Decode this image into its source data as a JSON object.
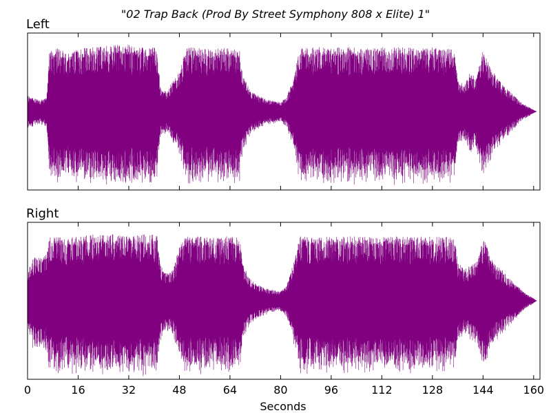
{
  "figure_title": "\"02 Trap Back  (Prod By Street Symphony 808 x Elite) 1\"",
  "chart_data": [
    {
      "type": "area",
      "title": "Left",
      "xlabel": "",
      "ylabel": "",
      "xlim": [
        0,
        162
      ],
      "ylim": [
        -1,
        1
      ],
      "grid": false,
      "color": "#800080",
      "series": [
        {
          "x": [
            0,
            2,
            4,
            6,
            7,
            8,
            10,
            12,
            16,
            20,
            24,
            28,
            32,
            36,
            40,
            41,
            42,
            44,
            46,
            48,
            50,
            52,
            56,
            60,
            64,
            66,
            67,
            68,
            70,
            72,
            76,
            80,
            82,
            84,
            86,
            88,
            92,
            96,
            100,
            104,
            108,
            112,
            116,
            120,
            124,
            128,
            132,
            134,
            135,
            136,
            138,
            140,
            142,
            144,
            146,
            148,
            150,
            152,
            154,
            156,
            158,
            160,
            161
          ],
          "envelope": [
            0.2,
            0.17,
            0.15,
            0.17,
            0.8,
            0.8,
            0.82,
            0.75,
            0.8,
            0.82,
            0.85,
            0.85,
            0.85,
            0.82,
            0.82,
            0.8,
            0.3,
            0.25,
            0.4,
            0.5,
            0.8,
            0.82,
            0.8,
            0.8,
            0.82,
            0.8,
            0.8,
            0.5,
            0.3,
            0.22,
            0.15,
            0.12,
            0.2,
            0.4,
            0.8,
            0.82,
            0.82,
            0.82,
            0.82,
            0.82,
            0.82,
            0.82,
            0.82,
            0.82,
            0.82,
            0.82,
            0.8,
            0.8,
            0.75,
            0.4,
            0.35,
            0.5,
            0.45,
            0.8,
            0.6,
            0.45,
            0.35,
            0.28,
            0.2,
            0.12,
            0.07,
            0.02,
            0.0
          ]
        }
      ]
    },
    {
      "type": "area",
      "title": "Right",
      "xlabel": "Seconds",
      "ylabel": "",
      "xlim": [
        0,
        162
      ],
      "ylim": [
        -1,
        1
      ],
      "grid": false,
      "color": "#800080",
      "x_ticks": [
        0,
        16,
        32,
        48,
        64,
        80,
        96,
        112,
        128,
        144,
        160
      ],
      "series": [
        {
          "x": [
            0,
            2,
            4,
            6,
            7,
            8,
            10,
            12,
            16,
            20,
            24,
            28,
            32,
            36,
            40,
            41,
            42,
            44,
            46,
            48,
            50,
            52,
            56,
            60,
            64,
            66,
            67,
            68,
            70,
            72,
            76,
            80,
            82,
            84,
            86,
            88,
            92,
            96,
            100,
            104,
            108,
            112,
            116,
            120,
            124,
            128,
            132,
            134,
            135,
            136,
            138,
            140,
            142,
            144,
            146,
            148,
            150,
            152,
            154,
            156,
            158,
            160,
            161
          ],
          "envelope": [
            0.35,
            0.6,
            0.55,
            0.6,
            0.82,
            0.82,
            0.82,
            0.8,
            0.82,
            0.85,
            0.85,
            0.85,
            0.85,
            0.85,
            0.85,
            0.82,
            0.45,
            0.35,
            0.4,
            0.7,
            0.82,
            0.82,
            0.82,
            0.82,
            0.82,
            0.82,
            0.82,
            0.5,
            0.3,
            0.22,
            0.15,
            0.12,
            0.2,
            0.5,
            0.82,
            0.82,
            0.82,
            0.82,
            0.82,
            0.82,
            0.82,
            0.82,
            0.82,
            0.82,
            0.82,
            0.82,
            0.82,
            0.82,
            0.8,
            0.5,
            0.4,
            0.45,
            0.5,
            0.82,
            0.6,
            0.45,
            0.4,
            0.3,
            0.22,
            0.15,
            0.08,
            0.03,
            0.0
          ]
        }
      ]
    }
  ]
}
